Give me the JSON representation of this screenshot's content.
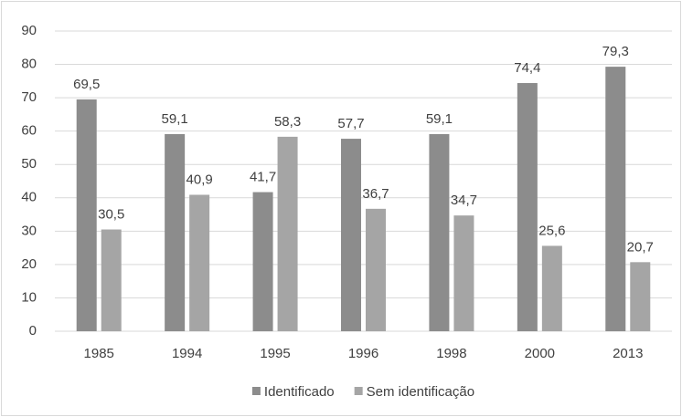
{
  "chart_data": {
    "type": "bar",
    "categories": [
      "1985",
      "1994",
      "1995",
      "1996",
      "1998",
      "2000",
      "2013"
    ],
    "series": [
      {
        "name": "Identificado",
        "color": "#8c8c8c",
        "values": [
          69.5,
          59.1,
          41.7,
          57.7,
          59.1,
          74.4,
          79.3
        ],
        "value_labels": [
          "69,5",
          "59,1",
          "41,7",
          "57,7",
          "59,1",
          "74,4",
          "79,3"
        ]
      },
      {
        "name": "Sem identificação",
        "color": "#a5a5a5",
        "values": [
          30.5,
          40.9,
          58.3,
          36.7,
          34.7,
          25.6,
          20.7
        ],
        "value_labels": [
          "30,5",
          "40,9",
          "58,3",
          "36,7",
          "34,7",
          "25,6",
          "20,7"
        ]
      }
    ],
    "ylim": [
      0,
      90
    ],
    "yticks": [
      0,
      10,
      20,
      30,
      40,
      50,
      60,
      70,
      80,
      90
    ],
    "grid": true,
    "legend": "bottom"
  }
}
